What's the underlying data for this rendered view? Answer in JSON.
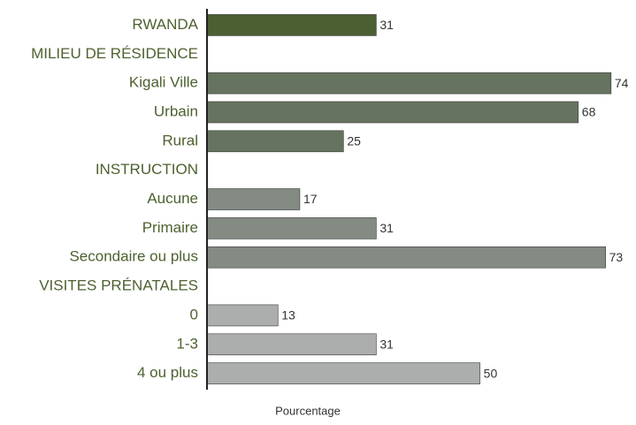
{
  "chart_data": {
    "type": "bar",
    "orientation": "horizontal",
    "x_label": "Pourcentage",
    "categories": [
      "RWANDA",
      "MILIEU DE RÉSIDENCE",
      "Kigali Ville",
      "Urbain",
      "Rural",
      "INSTRUCTION",
      "Aucune",
      "Primaire",
      "Secondaire ou plus",
      "VISITES PRÉNATALES",
      "0",
      "1-3",
      "4 ou plus"
    ],
    "values": [
      31,
      null,
      74,
      68,
      25,
      null,
      17,
      31,
      73,
      null,
      13,
      31,
      50
    ],
    "colors": [
      "#4b5f33",
      null,
      "#66735f",
      "#66735f",
      "#66735f",
      null,
      "#838b83",
      "#838b83",
      "#838b83",
      null,
      "#abaeac",
      "#abaeac",
      "#abaeac"
    ],
    "xlim": [
      0,
      75
    ]
  }
}
